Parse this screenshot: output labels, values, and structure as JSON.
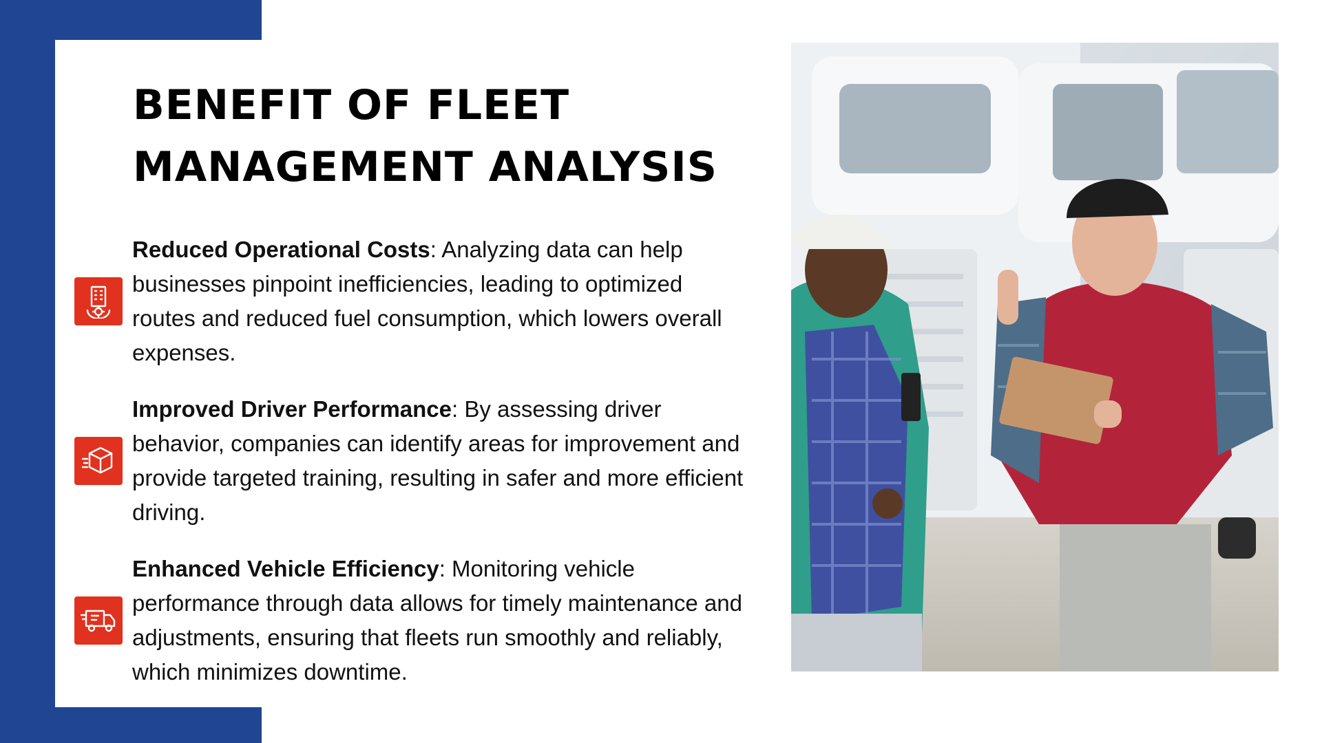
{
  "slide": {
    "title_line1": "BENEFIT OF FLEET",
    "title_line2": "MANAGEMENT ANALYSIS",
    "accent_blue": "#1f4593",
    "icon_red": "#e0321f"
  },
  "benefits": [
    {
      "icon": "building-gear-icon",
      "heading": "Reduced Operational Costs",
      "text": ":  Analyzing data can help businesses pinpoint inefficiencies, leading to optimized routes and reduced fuel consumption, which lowers overall expenses."
    },
    {
      "icon": "fast-delivery-box-icon",
      "heading": "Improved Driver Performance",
      "text": ": By assessing driver behavior, companies can identify areas for improvement and provide targeted training, resulting in safer and more efficient driving."
    },
    {
      "icon": "delivery-truck-icon",
      "heading": "Enhanced Vehicle Efficiency",
      "text": ": Monitoring vehicle performance through data allows for timely maintenance and adjustments, ensuring that fleets run smoothly and reliably, which minimizes downtime."
    }
  ],
  "photo": {
    "subject": "two-workers-with-clipboard-by-trucks"
  }
}
